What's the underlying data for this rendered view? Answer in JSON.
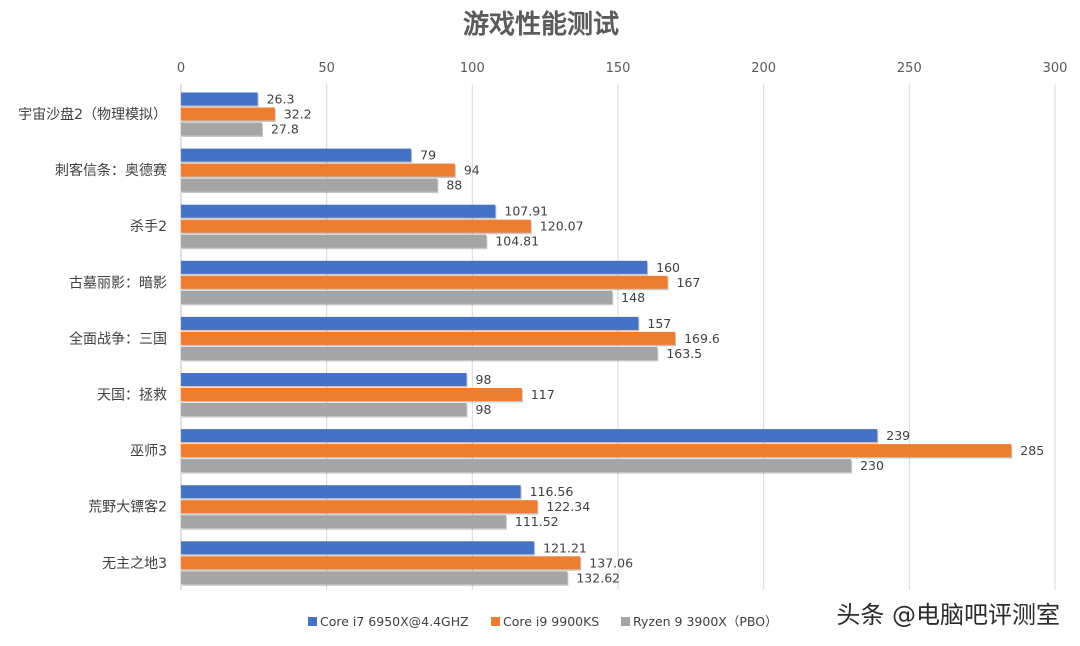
{
  "chart_data": {
    "type": "bar",
    "orientation": "horizontal",
    "title": "游戏性能测试",
    "xlim": [
      0,
      300
    ],
    "x_ticks": [
      "0",
      "50",
      "100",
      "150",
      "200",
      "250",
      "300"
    ],
    "x_tick_values": [
      0,
      50,
      100,
      150,
      200,
      250,
      300
    ],
    "grid": true,
    "legend_position": "bottom",
    "categories": [
      "宇宙沙盘2（物理模拟）",
      "刺客信条：奥德赛",
      "杀手2",
      "古墓丽影：暗影",
      "全面战争：三国",
      "天国：拯救",
      "巫师3",
      "荒野大镖客2",
      "无主之地3"
    ],
    "series": [
      {
        "name": "Core i7 6950X@4.4GHZ",
        "color": "#4472c4",
        "values": [
          26.3,
          79,
          107.91,
          160,
          157,
          98,
          239,
          116.56,
          121.21
        ],
        "labels": [
          "26.3",
          "79",
          "107.91",
          "160",
          "157",
          "98",
          "239",
          "116.56",
          "121.21"
        ]
      },
      {
        "name": "Core i9 9900KS",
        "color": "#ed7d31",
        "values": [
          32.2,
          94,
          120.07,
          167,
          169.6,
          117,
          285,
          122.34,
          137.06
        ],
        "labels": [
          "32.2",
          "94",
          "120.07",
          "167",
          "169.6",
          "117",
          "285",
          "122.34",
          "137.06"
        ]
      },
      {
        "name": "Ryzen 9 3900X（PBO）",
        "color": "#a5a5a5",
        "values": [
          27.8,
          88,
          104.81,
          148,
          163.5,
          98,
          230,
          111.52,
          132.62
        ],
        "labels": [
          "27.8",
          "88",
          "104.81",
          "148",
          "163.5",
          "98",
          "230",
          "111.52",
          "132.62"
        ]
      }
    ]
  },
  "watermark": "头条 @电脑吧评测室"
}
